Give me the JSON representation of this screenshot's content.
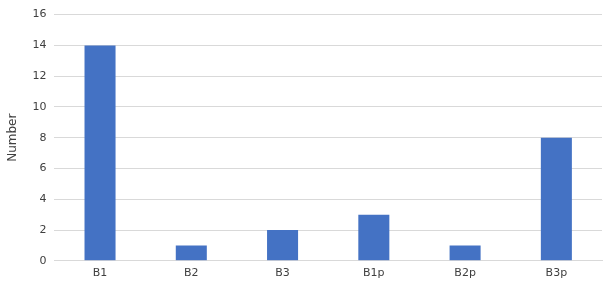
{
  "chart_data": {
    "type": "bar",
    "y_label": "Number",
    "categories": [
      "B1",
      "B2",
      "B3",
      "B1p",
      "B2p",
      "B3p"
    ],
    "values": [
      14,
      1,
      2,
      3,
      1,
      8
    ],
    "color": "#4472c4",
    "ylim": [
      0,
      16
    ],
    "yticks": [
      0,
      2,
      4,
      6,
      8,
      10,
      12,
      14,
      16
    ],
    "grid": true
  }
}
